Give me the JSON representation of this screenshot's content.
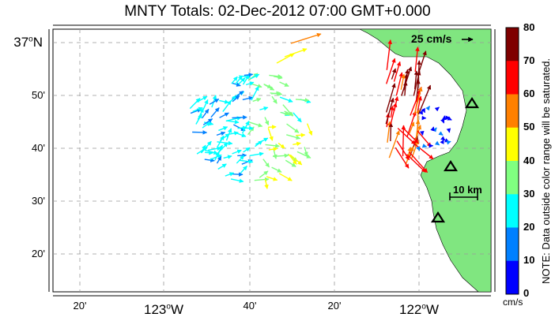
{
  "title": "MNTY Totals: 02-Dec-2012 07:00 GMT+0.000",
  "y_axis": {
    "ticks": [
      {
        "label": "37",
        "suffix": "N",
        "big": true
      },
      {
        "label": "50'",
        "big": false
      },
      {
        "label": "40'",
        "big": false
      },
      {
        "label": "30'",
        "big": false
      },
      {
        "label": "20'",
        "big": false
      }
    ]
  },
  "x_axis": {
    "ticks": [
      {
        "label": "20'",
        "big": false
      },
      {
        "label": "123",
        "suffix": "W",
        "big": true
      },
      {
        "label": "40'",
        "big": false
      },
      {
        "label": "20'",
        "big": false
      },
      {
        "label": "122",
        "suffix": "W",
        "big": true
      }
    ]
  },
  "colorbar": {
    "ticks": [
      "80",
      "70",
      "60",
      "50",
      "40",
      "30",
      "20",
      "10",
      "0"
    ],
    "colors": [
      "#7f0000",
      "#ff0000",
      "#ff8000",
      "#ffff00",
      "#80ff80",
      "#00ffff",
      "#0080ff",
      "#0000ff"
    ],
    "unit": "cm/s",
    "note": "NOTE: Data outside color range will be saturated."
  },
  "legend": {
    "scale_vector_label": "25 cm/s",
    "distance_scale_label": "10 km"
  },
  "colors": {
    "land": "#80e680",
    "grid": "#999999"
  },
  "icons": [
    "radar-site-triangle-icon",
    "current-vector-arrow-icon"
  ]
}
